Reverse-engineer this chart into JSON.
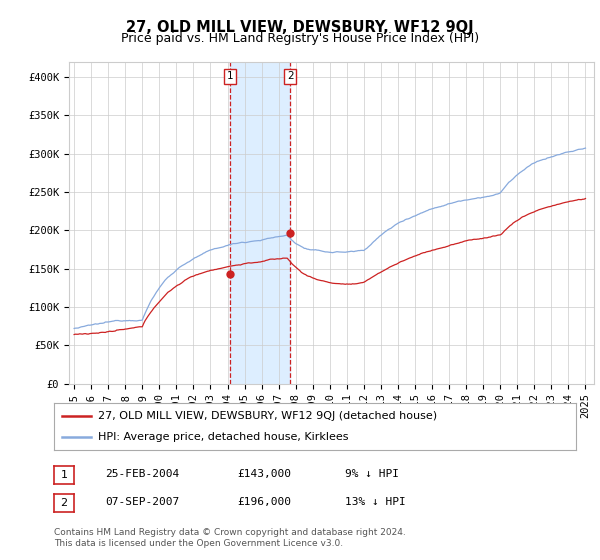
{
  "title": "27, OLD MILL VIEW, DEWSBURY, WF12 9QJ",
  "subtitle": "Price paid vs. HM Land Registry's House Price Index (HPI)",
  "ylim": [
    0,
    420000
  ],
  "yticks": [
    0,
    50000,
    100000,
    150000,
    200000,
    250000,
    300000,
    350000,
    400000
  ],
  "ytick_labels": [
    "£0",
    "£50K",
    "£100K",
    "£150K",
    "£200K",
    "£250K",
    "£300K",
    "£350K",
    "£400K"
  ],
  "bg_color": "#ffffff",
  "plot_bg_color": "#ffffff",
  "grid_color": "#cccccc",
  "hpi_line_color": "#88aadd",
  "price_line_color": "#cc2222",
  "sale1_date": 2004.15,
  "sale1_price": 143000,
  "sale2_date": 2007.68,
  "sale2_price": 196000,
  "highlight_color": "#ddeeff",
  "legend_price_label": "27, OLD MILL VIEW, DEWSBURY, WF12 9QJ (detached house)",
  "legend_hpi_label": "HPI: Average price, detached house, Kirklees",
  "footer_text": "Contains HM Land Registry data © Crown copyright and database right 2024.\nThis data is licensed under the Open Government Licence v3.0.",
  "table_row1": [
    "1",
    "25-FEB-2004",
    "£143,000",
    "9% ↓ HPI"
  ],
  "table_row2": [
    "2",
    "07-SEP-2007",
    "£196,000",
    "13% ↓ HPI"
  ],
  "title_fontsize": 10.5,
  "subtitle_fontsize": 9,
  "tick_fontsize": 7.5,
  "legend_fontsize": 8,
  "footer_fontsize": 6.5
}
